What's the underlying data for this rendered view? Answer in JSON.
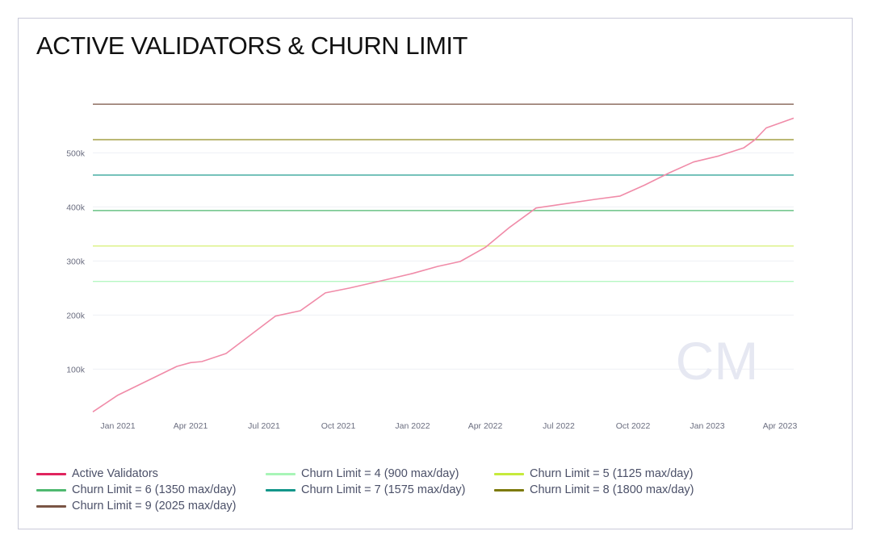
{
  "title": "ACTIVE VALIDATORS & CHURN LIMIT",
  "watermark": "CM",
  "chart_data": {
    "type": "line",
    "title": "ACTIVE VALIDATORS & CHURN LIMIT",
    "xlabel": "",
    "ylabel": "",
    "x_range": [
      "2020-12-01",
      "2023-04-18"
    ],
    "ylim": [
      20000,
      590000
    ],
    "grid": true,
    "legend_position": "bottom",
    "x_ticks": [
      {
        "date": "2021-01-01",
        "label": "Jan 2021"
      },
      {
        "date": "2021-04-01",
        "label": "Apr 2021"
      },
      {
        "date": "2021-07-01",
        "label": "Jul 2021"
      },
      {
        "date": "2021-10-01",
        "label": "Oct 2021"
      },
      {
        "date": "2022-01-01",
        "label": "Jan 2022"
      },
      {
        "date": "2022-04-01",
        "label": "Apr 2022"
      },
      {
        "date": "2022-07-01",
        "label": "Jul 2022"
      },
      {
        "date": "2022-10-01",
        "label": "Oct 2022"
      },
      {
        "date": "2023-01-01",
        "label": "Jan 2023"
      },
      {
        "date": "2023-04-01",
        "label": "Apr 2023"
      }
    ],
    "y_ticks": [
      {
        "value": 100000,
        "label": "100k"
      },
      {
        "value": 200000,
        "label": "200k"
      },
      {
        "value": 300000,
        "label": "300k"
      },
      {
        "value": 400000,
        "label": "400k"
      },
      {
        "value": 500000,
        "label": "500k"
      }
    ],
    "series": [
      {
        "name": "Active Validators",
        "color": "#f08ba8",
        "points": [
          [
            "2020-12-01",
            21000
          ],
          [
            "2021-01-01",
            52000
          ],
          [
            "2021-03-15",
            105000
          ],
          [
            "2021-04-01",
            112000
          ],
          [
            "2021-04-15",
            114000
          ],
          [
            "2021-05-15",
            129000
          ],
          [
            "2021-07-15",
            198000
          ],
          [
            "2021-08-15",
            208000
          ],
          [
            "2021-09-15",
            241000
          ],
          [
            "2021-10-15",
            250000
          ],
          [
            "2021-12-01",
            266000
          ],
          [
            "2022-01-01",
            277000
          ],
          [
            "2022-02-01",
            290000
          ],
          [
            "2022-03-01",
            299000
          ],
          [
            "2022-04-01",
            325000
          ],
          [
            "2022-05-01",
            362000
          ],
          [
            "2022-06-03",
            398000
          ],
          [
            "2022-07-15",
            407000
          ],
          [
            "2022-08-15",
            414000
          ],
          [
            "2022-09-15",
            420000
          ],
          [
            "2022-10-15",
            440000
          ],
          [
            "2022-11-15",
            463000
          ],
          [
            "2022-12-15",
            483000
          ],
          [
            "2023-01-15",
            494000
          ],
          [
            "2023-02-15",
            509000
          ],
          [
            "2023-03-01",
            524000
          ],
          [
            "2023-03-15",
            546000
          ],
          [
            "2023-04-18",
            564000
          ]
        ]
      },
      {
        "name": "Churn Limit = 4 (900 max/day)",
        "color": "#a8f5b7",
        "value": 262144
      },
      {
        "name": "Churn Limit = 5 (1125 max/day)",
        "color": "#d4f06a",
        "value": 327680
      },
      {
        "name": "Churn Limit = 6 (1350 max/day)",
        "color": "#4fb970",
        "value": 393216
      },
      {
        "name": "Churn Limit = 7 (1575 max/day)",
        "color": "#13968a",
        "value": 458752
      },
      {
        "name": "Churn Limit = 8 (1800 max/day)",
        "color": "#8a8510",
        "value": 524288
      },
      {
        "name": "Churn Limit = 9 (2025 max/day)",
        "color": "#7a5545",
        "value": 589824
      }
    ]
  },
  "legend": [
    {
      "label": "Active Validators",
      "color": "#e0245e"
    },
    {
      "label": "Churn Limit = 4 (900 max/day)",
      "color": "#a8f5b7"
    },
    {
      "label": "Churn Limit = 5 (1125 max/day)",
      "color": "#c6ea3c"
    },
    {
      "label": "Churn Limit = 6 (1350 max/day)",
      "color": "#4fb970"
    },
    {
      "label": "Churn Limit = 7 (1575 max/day)",
      "color": "#13968a"
    },
    {
      "label": "Churn Limit = 8 (1800 max/day)",
      "color": "#7d7a0c"
    },
    {
      "label": "Churn Limit = 9 (2025 max/day)",
      "color": "#7a5545"
    }
  ]
}
